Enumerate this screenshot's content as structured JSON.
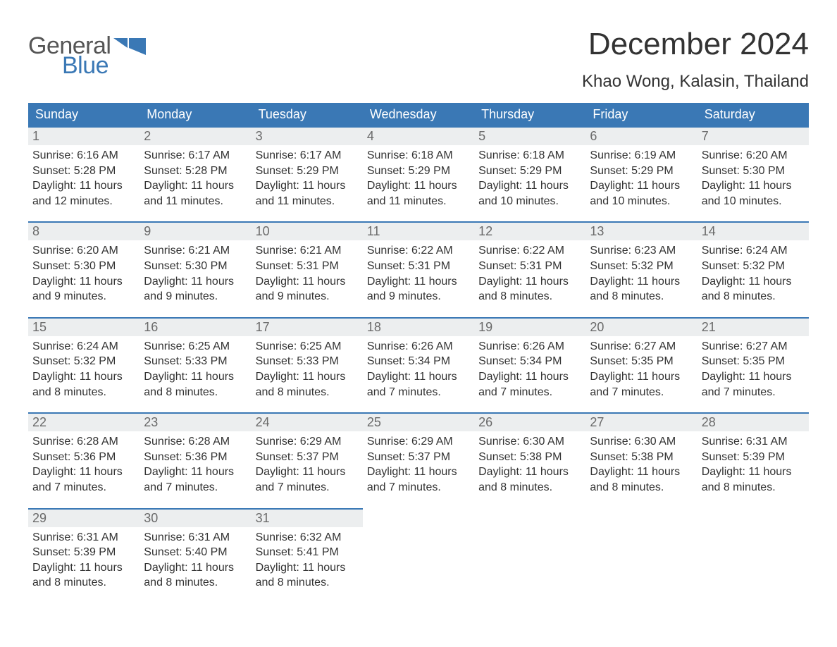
{
  "logo": {
    "general": "General",
    "blue": "Blue",
    "icon_color": "#3a78b5"
  },
  "title": "December 2024",
  "location": "Khao Wong, Kalasin, Thailand",
  "colors": {
    "header_bg": "#3a78b5",
    "header_text": "#ffffff",
    "daynum_bg": "#eceeef",
    "daynum_text": "#6a6a6a",
    "body_text": "#333333",
    "page_bg": "#ffffff",
    "row_border": "#3a78b5"
  },
  "typography": {
    "title_fontsize": 44,
    "location_fontsize": 24,
    "header_fontsize": 18,
    "daynum_fontsize": 18,
    "body_fontsize": 16
  },
  "day_labels": [
    "Sunday",
    "Monday",
    "Tuesday",
    "Wednesday",
    "Thursday",
    "Friday",
    "Saturday"
  ],
  "labels": {
    "sunrise": "Sunrise:",
    "sunset": "Sunset:",
    "daylight": "Daylight:"
  },
  "weeks": [
    [
      {
        "day": "1",
        "sunrise": "6:16 AM",
        "sunset": "5:28 PM",
        "daylight": "11 hours and 12 minutes."
      },
      {
        "day": "2",
        "sunrise": "6:17 AM",
        "sunset": "5:28 PM",
        "daylight": "11 hours and 11 minutes."
      },
      {
        "day": "3",
        "sunrise": "6:17 AM",
        "sunset": "5:29 PM",
        "daylight": "11 hours and 11 minutes."
      },
      {
        "day": "4",
        "sunrise": "6:18 AM",
        "sunset": "5:29 PM",
        "daylight": "11 hours and 11 minutes."
      },
      {
        "day": "5",
        "sunrise": "6:18 AM",
        "sunset": "5:29 PM",
        "daylight": "11 hours and 10 minutes."
      },
      {
        "day": "6",
        "sunrise": "6:19 AM",
        "sunset": "5:29 PM",
        "daylight": "11 hours and 10 minutes."
      },
      {
        "day": "7",
        "sunrise": "6:20 AM",
        "sunset": "5:30 PM",
        "daylight": "11 hours and 10 minutes."
      }
    ],
    [
      {
        "day": "8",
        "sunrise": "6:20 AM",
        "sunset": "5:30 PM",
        "daylight": "11 hours and 9 minutes."
      },
      {
        "day": "9",
        "sunrise": "6:21 AM",
        "sunset": "5:30 PM",
        "daylight": "11 hours and 9 minutes."
      },
      {
        "day": "10",
        "sunrise": "6:21 AM",
        "sunset": "5:31 PM",
        "daylight": "11 hours and 9 minutes."
      },
      {
        "day": "11",
        "sunrise": "6:22 AM",
        "sunset": "5:31 PM",
        "daylight": "11 hours and 9 minutes."
      },
      {
        "day": "12",
        "sunrise": "6:22 AM",
        "sunset": "5:31 PM",
        "daylight": "11 hours and 8 minutes."
      },
      {
        "day": "13",
        "sunrise": "6:23 AM",
        "sunset": "5:32 PM",
        "daylight": "11 hours and 8 minutes."
      },
      {
        "day": "14",
        "sunrise": "6:24 AM",
        "sunset": "5:32 PM",
        "daylight": "11 hours and 8 minutes."
      }
    ],
    [
      {
        "day": "15",
        "sunrise": "6:24 AM",
        "sunset": "5:32 PM",
        "daylight": "11 hours and 8 minutes."
      },
      {
        "day": "16",
        "sunrise": "6:25 AM",
        "sunset": "5:33 PM",
        "daylight": "11 hours and 8 minutes."
      },
      {
        "day": "17",
        "sunrise": "6:25 AM",
        "sunset": "5:33 PM",
        "daylight": "11 hours and 8 minutes."
      },
      {
        "day": "18",
        "sunrise": "6:26 AM",
        "sunset": "5:34 PM",
        "daylight": "11 hours and 7 minutes."
      },
      {
        "day": "19",
        "sunrise": "6:26 AM",
        "sunset": "5:34 PM",
        "daylight": "11 hours and 7 minutes."
      },
      {
        "day": "20",
        "sunrise": "6:27 AM",
        "sunset": "5:35 PM",
        "daylight": "11 hours and 7 minutes."
      },
      {
        "day": "21",
        "sunrise": "6:27 AM",
        "sunset": "5:35 PM",
        "daylight": "11 hours and 7 minutes."
      }
    ],
    [
      {
        "day": "22",
        "sunrise": "6:28 AM",
        "sunset": "5:36 PM",
        "daylight": "11 hours and 7 minutes."
      },
      {
        "day": "23",
        "sunrise": "6:28 AM",
        "sunset": "5:36 PM",
        "daylight": "11 hours and 7 minutes."
      },
      {
        "day": "24",
        "sunrise": "6:29 AM",
        "sunset": "5:37 PM",
        "daylight": "11 hours and 7 minutes."
      },
      {
        "day": "25",
        "sunrise": "6:29 AM",
        "sunset": "5:37 PM",
        "daylight": "11 hours and 7 minutes."
      },
      {
        "day": "26",
        "sunrise": "6:30 AM",
        "sunset": "5:38 PM",
        "daylight": "11 hours and 8 minutes."
      },
      {
        "day": "27",
        "sunrise": "6:30 AM",
        "sunset": "5:38 PM",
        "daylight": "11 hours and 8 minutes."
      },
      {
        "day": "28",
        "sunrise": "6:31 AM",
        "sunset": "5:39 PM",
        "daylight": "11 hours and 8 minutes."
      }
    ],
    [
      {
        "day": "29",
        "sunrise": "6:31 AM",
        "sunset": "5:39 PM",
        "daylight": "11 hours and 8 minutes."
      },
      {
        "day": "30",
        "sunrise": "6:31 AM",
        "sunset": "5:40 PM",
        "daylight": "11 hours and 8 minutes."
      },
      {
        "day": "31",
        "sunrise": "6:32 AM",
        "sunset": "5:41 PM",
        "daylight": "11 hours and 8 minutes."
      },
      null,
      null,
      null,
      null
    ]
  ]
}
